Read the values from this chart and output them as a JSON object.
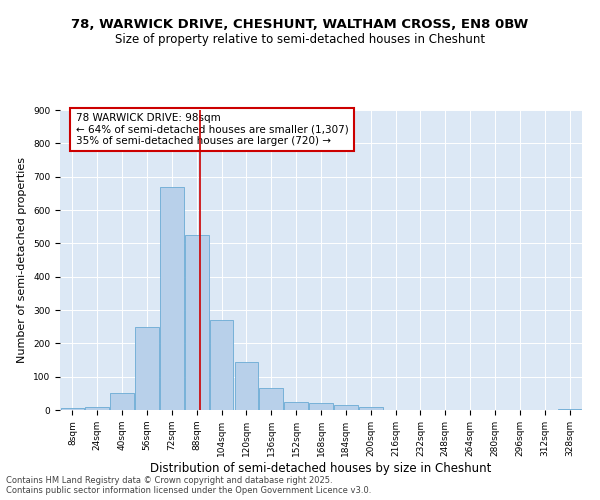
{
  "title_line1": "78, WARWICK DRIVE, CHESHUNT, WALTHAM CROSS, EN8 0BW",
  "title_line2": "Size of property relative to semi-detached houses in Cheshunt",
  "xlabel": "Distribution of semi-detached houses by size in Cheshunt",
  "ylabel": "Number of semi-detached properties",
  "annotation_line1": "78 WARWICK DRIVE: 98sqm",
  "annotation_line2": "← 64% of semi-detached houses are smaller (1,307)",
  "annotation_line3": "35% of semi-detached houses are larger (720) →",
  "vline_x": 98,
  "bin_starts": [
    8,
    24,
    40,
    56,
    72,
    88,
    104,
    120,
    136,
    152,
    168,
    184,
    200,
    216,
    232,
    248,
    264,
    280,
    296,
    312,
    328
  ],
  "bin_width": 16,
  "bar_heights": [
    5,
    10,
    50,
    250,
    670,
    525,
    270,
    145,
    65,
    25,
    20,
    15,
    10,
    0,
    0,
    0,
    0,
    0,
    0,
    0,
    2
  ],
  "bar_color": "#b8d0ea",
  "bar_edge_color": "#6aaad4",
  "vline_color": "#cc0000",
  "bg_color": "#dce8f5",
  "ylim": [
    0,
    900
  ],
  "yticks": [
    0,
    100,
    200,
    300,
    400,
    500,
    600,
    700,
    800,
    900
  ],
  "title_fontsize": 9.5,
  "subtitle_fontsize": 8.5,
  "xlabel_fontsize": 8.5,
  "ylabel_fontsize": 8,
  "tick_fontsize": 6.5,
  "annotation_fontsize": 7.5,
  "footer_fontsize": 6,
  "footer": "Contains HM Land Registry data © Crown copyright and database right 2025.\nContains public sector information licensed under the Open Government Licence v3.0."
}
